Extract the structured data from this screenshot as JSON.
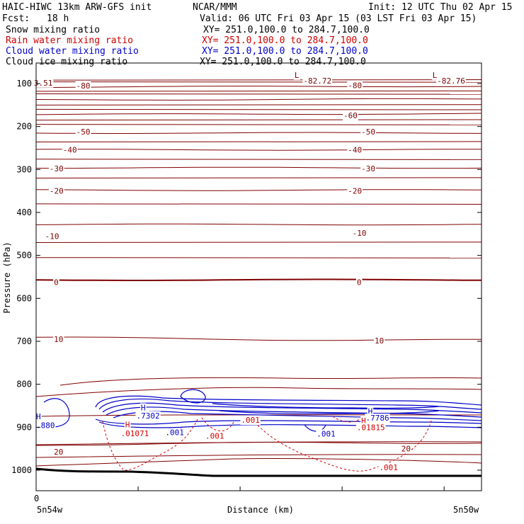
{
  "header": {
    "model": "HAIC-HIWC 13km ARW-GFS init",
    "center": "NCAR/MMM",
    "init": "Init: 12 UTC Thu 02 Apr 15",
    "fcst_label": "Fcst:",
    "fcst_value": "18 h",
    "valid": "Valid: 06 UTC Fri 03 Apr 15 (03 LST Fri 03 Apr 15)",
    "fields": [
      {
        "name": "Snow mixing ratio",
        "xy": "XY= 251.0,100.0 to 284.7,100.0",
        "color": "#000000"
      },
      {
        "name": "Rain water mixing ratio",
        "xy": "XY= 251.0,100.0 to 284.7,100.0",
        "color": "#d00000"
      },
      {
        "name": "Cloud water mixing ratio",
        "xy": "XY= 251.0,100.0 to 284.7,100.0",
        "color": "#0000c8"
      },
      {
        "name": "Cloud ice mixing ratio",
        "xy": "XY= 251.0,100.0 to 284.7,100.0",
        "color": "#000000"
      }
    ]
  },
  "chart_data": {
    "type": "contour-cross-section",
    "ylabel": "Pressure (hPa)",
    "xlabel": "Distance (km)",
    "y_ticks": [
      100,
      200,
      300,
      400,
      500,
      600,
      700,
      800,
      900,
      1000
    ],
    "ylim": [
      1050,
      55
    ],
    "x_tick_value": "0",
    "x_left_label": "5n54w",
    "x_right_label": "5n50w",
    "colors": {
      "temperature": "#800000",
      "rain": "#d00000",
      "cloud_water": "#0000c8",
      "ground": "#000000"
    },
    "isotherms": [
      {
        "value": -80,
        "left_pressure": 108,
        "right_pressure": 106
      },
      {
        "value": -70,
        "left_pressure": 138,
        "right_pressure": 136
      },
      {
        "value": -60,
        "left_pressure": 172,
        "right_pressure": 170
      },
      {
        "value": -50,
        "left_pressure": 215,
        "right_pressure": 215
      },
      {
        "value": -40,
        "left_pressure": 254,
        "right_pressure": 254
      },
      {
        "value": -30,
        "left_pressure": 296,
        "right_pressure": 296
      },
      {
        "value": -20,
        "left_pressure": 348,
        "right_pressure": 348
      },
      {
        "value": -10,
        "left_pressure": 428,
        "right_pressure": 428
      },
      {
        "value": 0,
        "left_pressure": 557,
        "right_pressure": 557
      },
      {
        "value": 10,
        "left_pressure": 692,
        "right_pressure": 698
      },
      {
        "value": 20,
        "left_pressure": 940,
        "right_pressure": 935
      }
    ],
    "contour_labels": [
      {
        "text": "-82.72",
        "kind": "temp",
        "x_frac": 0.6,
        "pressure": 93
      },
      {
        "text": "-82.76",
        "kind": "temp",
        "x_frac": 0.9,
        "pressure": 93
      },
      {
        "text": "L",
        "kind": "temp",
        "x_frac": 0.58,
        "pressure": 80
      },
      {
        "text": "L",
        "kind": "temp",
        "x_frac": 0.89,
        "pressure": 80
      },
      {
        "text": "3.51",
        "kind": "temp",
        "x_frac": -0.005,
        "pressure": 98
      },
      {
        "text": "-80",
        "kind": "temp",
        "x_frac": 0.09,
        "pressure": 105
      },
      {
        "text": "-80",
        "kind": "temp",
        "x_frac": 0.7,
        "pressure": 104
      },
      {
        "text": "-60",
        "kind": "temp",
        "x_frac": 0.69,
        "pressure": 174
      },
      {
        "text": "-50",
        "kind": "temp",
        "x_frac": 0.09,
        "pressure": 212
      },
      {
        "text": "-50",
        "kind": "temp",
        "x_frac": 0.73,
        "pressure": 212
      },
      {
        "text": "-40",
        "kind": "temp",
        "x_frac": 0.06,
        "pressure": 254
      },
      {
        "text": "-40",
        "kind": "temp",
        "x_frac": 0.7,
        "pressure": 254
      },
      {
        "text": "-30",
        "kind": "temp",
        "x_frac": 0.03,
        "pressure": 298
      },
      {
        "text": "-30",
        "kind": "temp",
        "x_frac": 0.73,
        "pressure": 298
      },
      {
        "text": "-20",
        "kind": "temp",
        "x_frac": 0.03,
        "pressure": 350
      },
      {
        "text": "-20",
        "kind": "temp",
        "x_frac": 0.7,
        "pressure": 350
      },
      {
        "text": "-10",
        "kind": "temp",
        "x_frac": 0.02,
        "pressure": 455
      },
      {
        "text": "-10",
        "kind": "temp",
        "x_frac": 0.71,
        "pressure": 448
      },
      {
        "text": "0",
        "kind": "temp",
        "x_frac": 0.04,
        "pressure": 562
      },
      {
        "text": "0",
        "kind": "temp",
        "x_frac": 0.72,
        "pressure": 562
      },
      {
        "text": "10",
        "kind": "temp",
        "x_frac": 0.04,
        "pressure": 695
      },
      {
        "text": "10",
        "kind": "temp",
        "x_frac": 0.76,
        "pressure": 698
      },
      {
        "text": "20",
        "kind": "temp",
        "x_frac": 0.04,
        "pressure": 957
      },
      {
        "text": "20",
        "kind": "temp",
        "x_frac": 0.82,
        "pressure": 950
      },
      {
        "text": "H",
        "kind": "cloud",
        "x_frac": 0.235,
        "pressure": 854
      },
      {
        "text": ".7302",
        "kind": "cloud",
        "x_frac": 0.225,
        "pressure": 873
      },
      {
        "text": "H",
        "kind": "cloud",
        "x_frac": 0.745,
        "pressure": 862
      },
      {
        "text": ".7786",
        "kind": "cloud",
        "x_frac": 0.74,
        "pressure": 878
      },
      {
        "text": ".880",
        "kind": "cloud",
        "x_frac": 0.0,
        "pressure": 895
      },
      {
        "text": "H",
        "kind": "cloud",
        "x_frac": 0.0,
        "pressure": 875
      },
      {
        "text": ".001",
        "kind": "cloud",
        "x_frac": 0.29,
        "pressure": 912
      },
      {
        "text": ".001",
        "kind": "cloud",
        "x_frac": 0.63,
        "pressure": 915
      },
      {
        "text": "H",
        "kind": "rain",
        "x_frac": 0.2,
        "pressure": 894
      },
      {
        "text": ".01071",
        "kind": "rain",
        "x_frac": 0.19,
        "pressure": 914
      },
      {
        "text": "H",
        "kind": "rain",
        "x_frac": 0.73,
        "pressure": 885
      },
      {
        "text": ".01815",
        "kind": "rain",
        "x_frac": 0.72,
        "pressure": 900
      },
      {
        "text": ".001",
        "kind": "rain",
        "x_frac": 0.38,
        "pressure": 920
      },
      {
        "text": ".001",
        "kind": "rain",
        "x_frac": 0.77,
        "pressure": 993
      },
      {
        "text": ".001",
        "kind": "rain",
        "x_frac": 0.46,
        "pressure": 883
      }
    ]
  }
}
